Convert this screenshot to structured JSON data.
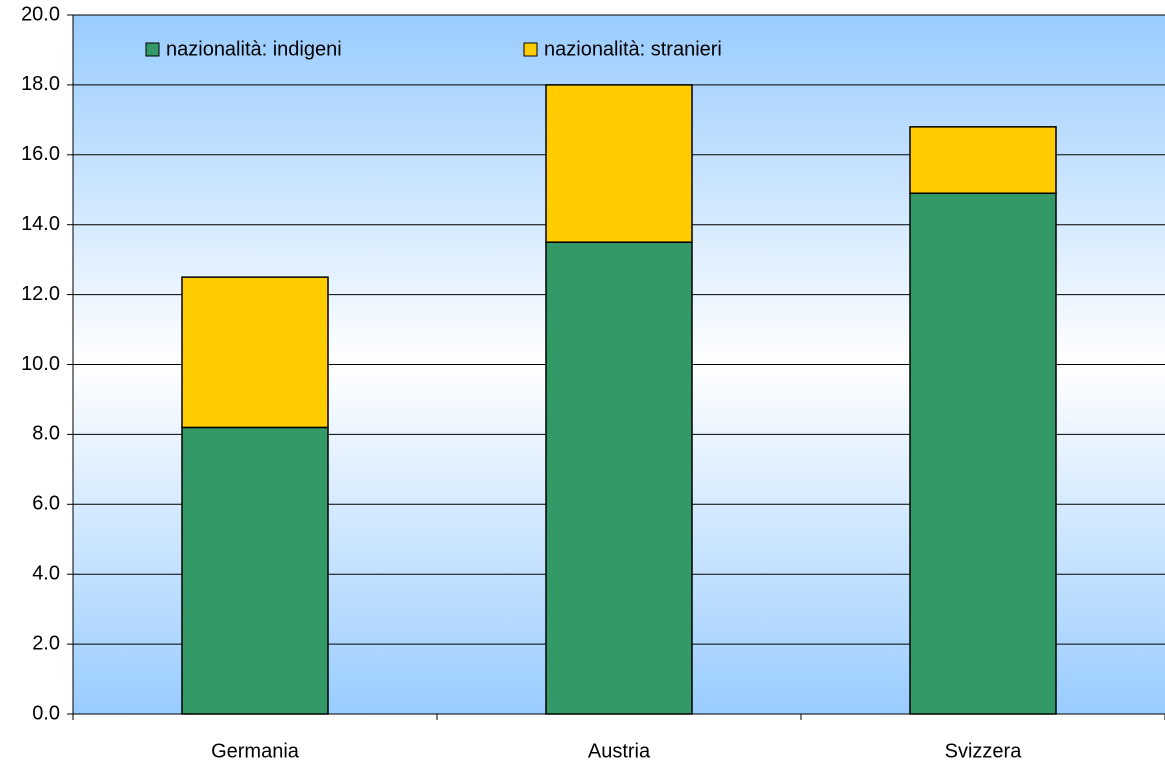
{
  "chart_data": {
    "type": "stacked-bar",
    "categories": [
      "Germania",
      "Austria",
      "Svizzera"
    ],
    "series": [
      {
        "name": "nazionalità: indigeni",
        "color": "#339966",
        "values": [
          8.2,
          13.5,
          14.9
        ]
      },
      {
        "name": "nazionalità: stranieri",
        "color": "#ffcc00",
        "values": [
          4.3,
          4.5,
          1.9
        ]
      }
    ],
    "ylim": [
      0,
      20
    ],
    "yticks": [
      {
        "value": 0,
        "label": "0.0"
      },
      {
        "value": 2,
        "label": "2.0"
      },
      {
        "value": 4,
        "label": "4.0"
      },
      {
        "value": 6,
        "label": "6.0"
      },
      {
        "value": 8,
        "label": "8.0"
      },
      {
        "value": 10,
        "label": "10.0"
      },
      {
        "value": 12,
        "label": "12.0"
      },
      {
        "value": 14,
        "label": "14.0"
      },
      {
        "value": 16,
        "label": "16.0"
      },
      {
        "value": 18,
        "label": "18.0"
      },
      {
        "value": 20,
        "label": "20.0"
      }
    ],
    "grid": true,
    "legend": "top"
  }
}
